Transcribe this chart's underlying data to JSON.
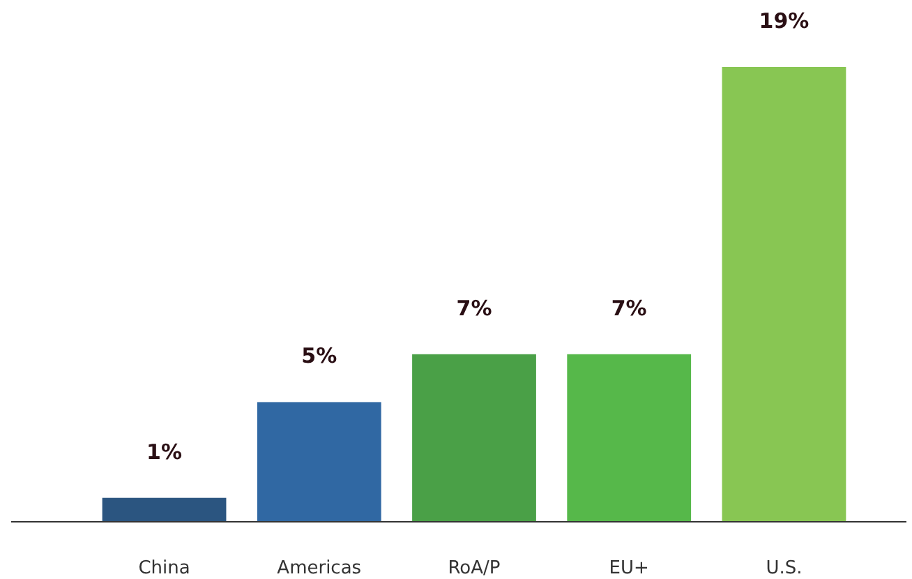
{
  "chart_data": {
    "type": "bar",
    "categories": [
      "China",
      "Americas",
      "RoA/P",
      "EU+",
      "U.S."
    ],
    "values": [
      1,
      5,
      7,
      7,
      19
    ],
    "colors": [
      "#2b5580",
      "#3068a3",
      "#4aa047",
      "#56b84a",
      "#88c653"
    ],
    "value_labels": [
      "1%",
      "5%",
      "7%",
      "7%",
      "19%"
    ]
  }
}
